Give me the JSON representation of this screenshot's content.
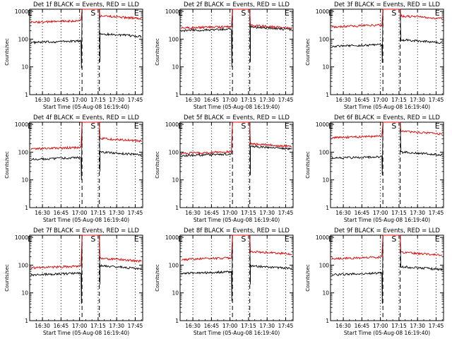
{
  "chart_data": [
    {
      "type": "line",
      "title": "Det 1f BLACK = Events, RED = LLD",
      "ylabel": "Counts/sec",
      "xlabel": "Start Time (05-Aug-08 16:19:40)",
      "x_ticks": [
        "16:30",
        "16:45",
        "17:00",
        "17:15",
        "17:30",
        "17:45"
      ],
      "y_ticks": [
        "1",
        "10",
        "100",
        "1000"
      ],
      "ylim": [
        1,
        1200
      ],
      "y_log": true,
      "markers": [
        {
          "label": "E",
          "at": "16:20"
        },
        {
          "label": "S",
          "at": "17:11"
        },
        {
          "label": "E",
          "at": "17:46"
        }
      ],
      "series": [
        {
          "color": "#000000",
          "pre": 75,
          "post": 125,
          "drop_before": 9,
          "drop_after": 15,
          "spike": false
        },
        {
          "color": "#e00000",
          "pre": 400,
          "post": 550,
          "drop_before": null,
          "drop_after": null,
          "spike": false
        }
      ]
    },
    {
      "type": "line",
      "title": "Det 2f BLACK = Events, RED = LLD",
      "ylabel": "Counts/sec",
      "xlabel": "Start Time (05-Aug-08 16:19:40)",
      "x_ticks": [
        "16:30",
        "16:45",
        "17:00",
        "17:15",
        "17:30",
        "17:45"
      ],
      "y_ticks": [
        "1",
        "10",
        "100",
        "1000"
      ],
      "ylim": [
        1,
        1200
      ],
      "y_log": true,
      "markers": [
        {
          "label": "E",
          "at": "16:20"
        },
        {
          "label": "S",
          "at": "17:11"
        },
        {
          "label": "E",
          "at": "17:46"
        }
      ],
      "series": [
        {
          "color": "#000000",
          "pre": 200,
          "post": 220,
          "drop_before": 10,
          "drop_after": 15,
          "spike": true
        },
        {
          "color": "#e00000",
          "pre": 250,
          "post": 250,
          "drop_before": null,
          "drop_after": null,
          "spike": true
        }
      ]
    },
    {
      "type": "line",
      "title": "Det 3f BLACK = Events, RED = LLD",
      "ylabel": "Counts/sec",
      "xlabel": "Start Time (05-Aug-08 16:19:40)",
      "x_ticks": [
        "16:30",
        "16:45",
        "17:00",
        "17:15",
        "17:30",
        "17:45"
      ],
      "y_ticks": [
        "1",
        "10",
        "100",
        "1000"
      ],
      "ylim": [
        1,
        1200
      ],
      "y_log": true,
      "markers": [
        {
          "label": "E",
          "at": "16:20"
        },
        {
          "label": "S",
          "at": "17:11"
        },
        {
          "label": "E",
          "at": "17:46"
        }
      ],
      "series": [
        {
          "color": "#000000",
          "pre": 55,
          "post": 75,
          "drop_before": 14,
          "drop_after": null,
          "spike": false
        },
        {
          "color": "#e00000",
          "pre": 280,
          "post": 550,
          "drop_before": null,
          "drop_after": null,
          "spike": false
        }
      ]
    },
    {
      "type": "line",
      "title": "Det 4f BLACK = Events, RED = LLD",
      "ylabel": "Counts/sec",
      "xlabel": "Start Time (05-Aug-08 16:19:40)",
      "x_ticks": [
        "16:30",
        "16:45",
        "17:00",
        "17:15",
        "17:30",
        "17:45"
      ],
      "y_ticks": [
        "1",
        "10",
        "100",
        "1000"
      ],
      "ylim": [
        1,
        1200
      ],
      "y_log": true,
      "markers": [
        {
          "label": "E",
          "at": "16:20"
        },
        {
          "label": "S",
          "at": "17:11"
        },
        {
          "label": "E",
          "at": "17:46"
        }
      ],
      "series": [
        {
          "color": "#000000",
          "pre": 55,
          "post": 80,
          "drop_before": 10,
          "drop_after": 20,
          "spike": false
        },
        {
          "color": "#e00000",
          "pre": 130,
          "post": 250,
          "drop_before": null,
          "drop_after": null,
          "spike": false
        }
      ]
    },
    {
      "type": "line",
      "title": "Det 5f BLACK = Events, RED = LLD",
      "ylabel": "Counts/sec",
      "xlabel": "Start Time (05-Aug-08 16:19:40)",
      "x_ticks": [
        "16:30",
        "16:45",
        "17:00",
        "17:15",
        "17:30",
        "17:45"
      ],
      "y_ticks": [
        "1",
        "10",
        "100",
        "1000"
      ],
      "ylim": [
        1,
        1200
      ],
      "y_log": true,
      "markers": [
        {
          "label": "E",
          "at": "16:20"
        },
        {
          "label": "S",
          "at": "17:11"
        },
        {
          "label": "E",
          "at": "17:46"
        }
      ],
      "series": [
        {
          "color": "#000000",
          "pre": 75,
          "post": 130,
          "drop_before": null,
          "drop_after": 15,
          "spike": false
        },
        {
          "color": "#e00000",
          "pre": 90,
          "post": 160,
          "drop_before": null,
          "drop_after": null,
          "spike": false
        }
      ]
    },
    {
      "type": "line",
      "title": "Det 6f BLACK = Events, RED = LLD",
      "ylabel": "Counts/sec",
      "xlabel": "Start Time (05-Aug-08 16:19:40)",
      "x_ticks": [
        "16:30",
        "16:45",
        "17:00",
        "17:15",
        "17:30",
        "17:45"
      ],
      "y_ticks": [
        "1",
        "10",
        "100",
        "1000"
      ],
      "ylim": [
        1,
        1200
      ],
      "y_log": true,
      "markers": [
        {
          "label": "E",
          "at": "16:20"
        },
        {
          "label": "S",
          "at": "17:11"
        },
        {
          "label": "E",
          "at": "17:46"
        }
      ],
      "series": [
        {
          "color": "#000000",
          "pre": 60,
          "post": 80,
          "drop_before": 15,
          "drop_after": null,
          "spike": false
        },
        {
          "color": "#e00000",
          "pre": 330,
          "post": 450,
          "drop_before": null,
          "drop_after": null,
          "spike": false
        }
      ]
    },
    {
      "type": "line",
      "title": "Det 7f BLACK = Events, RED = LLD",
      "ylabel": "Counts/sec",
      "xlabel": "Start Time (05-Aug-08 16:19:40)",
      "x_ticks": [
        "16:30",
        "16:45",
        "17:00",
        "17:15",
        "17:30",
        "17:45"
      ],
      "y_ticks": [
        "1",
        "10",
        "100",
        "1000"
      ],
      "ylim": [
        1,
        1200
      ],
      "y_log": true,
      "markers": [
        {
          "label": "E",
          "at": "16:20"
        },
        {
          "label": "S",
          "at": "17:11"
        },
        {
          "label": "E",
          "at": "17:46"
        }
      ],
      "series": [
        {
          "color": "#000000",
          "pre": 45,
          "post": 75,
          "drop_before": 4,
          "drop_after": 20,
          "spike": false
        },
        {
          "color": "#e00000",
          "pre": 80,
          "post": 140,
          "drop_before": null,
          "drop_after": null,
          "spike": false
        }
      ]
    },
    {
      "type": "line",
      "title": "Det 8f BLACK = Events, RED = LLD",
      "ylabel": "Counts/sec",
      "xlabel": "Start Time (05-Aug-08 16:19:40)",
      "x_ticks": [
        "16:30",
        "16:45",
        "17:00",
        "17:15",
        "17:30",
        "17:45"
      ],
      "y_ticks": [
        "1",
        "10",
        "100",
        "1000"
      ],
      "ylim": [
        1,
        1200
      ],
      "y_log": true,
      "markers": [
        {
          "label": "E",
          "at": "16:20"
        },
        {
          "label": "S",
          "at": "17:11"
        },
        {
          "label": "E",
          "at": "17:46"
        }
      ],
      "series": [
        {
          "color": "#000000",
          "pre": 50,
          "post": 75,
          "drop_before": 5,
          "drop_after": 20,
          "spike": false
        },
        {
          "color": "#e00000",
          "pre": 160,
          "post": 250,
          "drop_before": null,
          "drop_after": null,
          "spike": false
        }
      ]
    },
    {
      "type": "line",
      "title": "Det 9f BLACK = Events, RED = LLD",
      "ylabel": "Counts/sec",
      "xlabel": "Start Time (05-Aug-08 16:19:40)",
      "x_ticks": [
        "16:30",
        "16:45",
        "17:00",
        "17:15",
        "17:30",
        "17:45"
      ],
      "y_ticks": [
        "1",
        "10",
        "100",
        "1000"
      ],
      "ylim": [
        1,
        1200
      ],
      "y_log": true,
      "markers": [
        {
          "label": "E",
          "at": "16:20"
        },
        {
          "label": "S",
          "at": "17:11"
        },
        {
          "label": "E",
          "at": "17:46"
        }
      ],
      "series": [
        {
          "color": "#000000",
          "pre": 45,
          "post": 70,
          "drop_before": 4,
          "drop_after": null,
          "spike": false
        },
        {
          "color": "#e00000",
          "pre": 170,
          "post": 230,
          "drop_before": null,
          "drop_after": null,
          "spike": false
        }
      ]
    }
  ]
}
